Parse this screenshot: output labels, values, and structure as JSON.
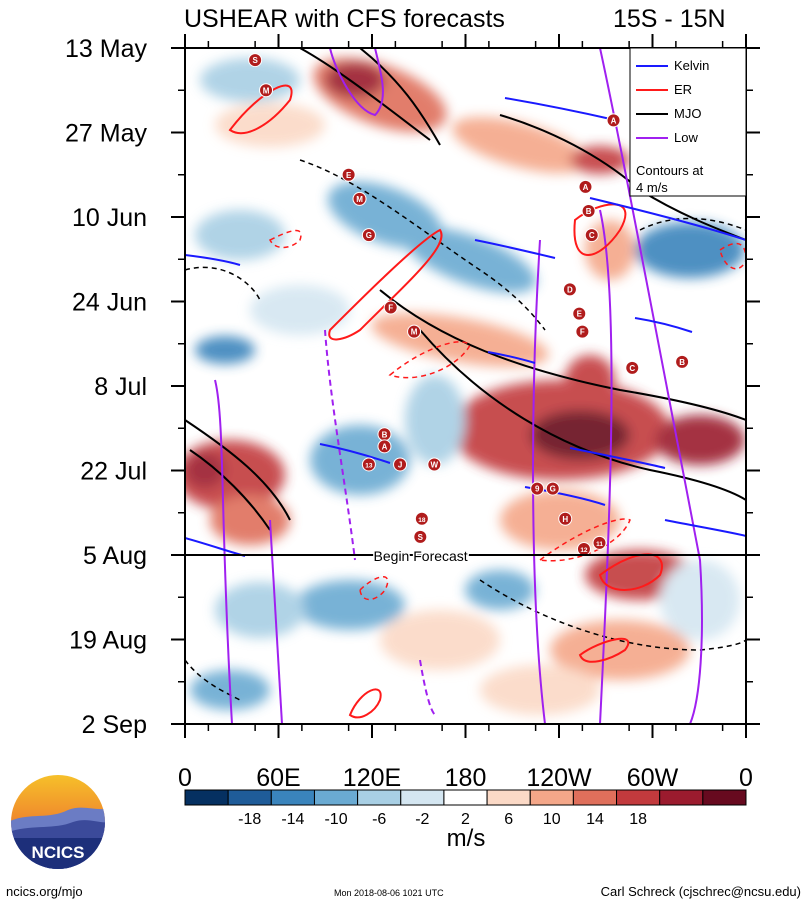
{
  "chart_data": {
    "type": "heatmap",
    "title": "USHEAR with CFS forecasts",
    "region": "15S - 15N",
    "y_ticks": [
      "13 May",
      "27 May",
      "10 Jun",
      "24 Jun",
      "8 Jul",
      "22 Jul",
      "5 Aug",
      "19 Aug",
      "2 Sep"
    ],
    "x_ticks": [
      "0",
      "60E",
      "120E",
      "180",
      "120W",
      "60W",
      "0"
    ],
    "forecast_start": "5 Aug",
    "forecast_label": "Begin Forecast",
    "colorbar": {
      "units": "m/s",
      "ticks": [
        "-18",
        "-14",
        "-10",
        "-6",
        "-2",
        "2",
        "6",
        "10",
        "14",
        "18"
      ],
      "colors": [
        "#053061",
        "#1f5c99",
        "#3a84bc",
        "#6aaad2",
        "#a8cfe4",
        "#d4e6f1",
        "#ffffff",
        "#fbd9c6",
        "#f4a789",
        "#df6f5b",
        "#c23a3d",
        "#9b1b2e",
        "#670a1f"
      ]
    },
    "legend": {
      "placement": "top-right",
      "entries": [
        {
          "label": "Kelvin",
          "color": "#1a1aff"
        },
        {
          "label": "ER",
          "color": "#ff1a1a"
        },
        {
          "label": "MJO",
          "color": "#000000"
        },
        {
          "label": "Low",
          "color": "#a020f0"
        }
      ],
      "note_line1": "Contours at",
      "note_line2": "4 m/s"
    },
    "storms": [
      {
        "label": "S",
        "lon": 45,
        "date": "15 May"
      },
      {
        "label": "M",
        "lon": 52,
        "date": "20 May"
      },
      {
        "label": "E",
        "lon": 105,
        "date": "3 Jun"
      },
      {
        "label": "M",
        "lon": 112,
        "date": "7 Jun"
      },
      {
        "label": "G",
        "lon": 118,
        "date": "13 Jun"
      },
      {
        "label": "F",
        "lon": 132,
        "date": "25 Jun"
      },
      {
        "label": "M",
        "lon": 147,
        "date": "29 Jun"
      },
      {
        "label": "B",
        "lon": 128,
        "date": "16 Jul"
      },
      {
        "label": "A",
        "lon": 128,
        "date": "18 Jul"
      },
      {
        "label": "13",
        "lon": 118,
        "date": "21 Jul"
      },
      {
        "label": "J",
        "lon": 138,
        "date": "21 Jul"
      },
      {
        "label": "W",
        "lon": 160,
        "date": "21 Jul"
      },
      {
        "label": "18",
        "lon": 152,
        "date": "30 Jul"
      },
      {
        "label": "S",
        "lon": 151,
        "date": "2 Aug"
      },
      {
        "label": "A",
        "lon": 275,
        "date": "25 May"
      },
      {
        "label": "A",
        "lon": 257,
        "date": "5 Jun"
      },
      {
        "label": "B",
        "lon": 259,
        "date": "9 Jun"
      },
      {
        "label": "C",
        "lon": 261,
        "date": "13 Jun"
      },
      {
        "label": "D",
        "lon": 247,
        "date": "22 Jun"
      },
      {
        "label": "E",
        "lon": 253,
        "date": "26 Jun"
      },
      {
        "label": "F",
        "lon": 255,
        "date": "29 Jun"
      },
      {
        "label": "C",
        "lon": 287,
        "date": "5 Jul"
      },
      {
        "label": "B",
        "lon": 319,
        "date": "4 Jul"
      },
      {
        "label": "9",
        "lon": 226,
        "date": "25 Jul"
      },
      {
        "label": "G",
        "lon": 236,
        "date": "25 Jul"
      },
      {
        "label": "H",
        "lon": 244,
        "date": "30 Jul"
      },
      {
        "label": "12",
        "lon": 256,
        "date": "4 Aug"
      },
      {
        "label": "11",
        "lon": 266,
        "date": "3 Aug"
      }
    ]
  },
  "footer": {
    "logo_text": "NCICS",
    "left": "ncics.org/mjo",
    "center": "Mon 2018-08-06 1021 UTC",
    "right": "Carl Schreck (cjschrec@ncsu.edu)"
  }
}
